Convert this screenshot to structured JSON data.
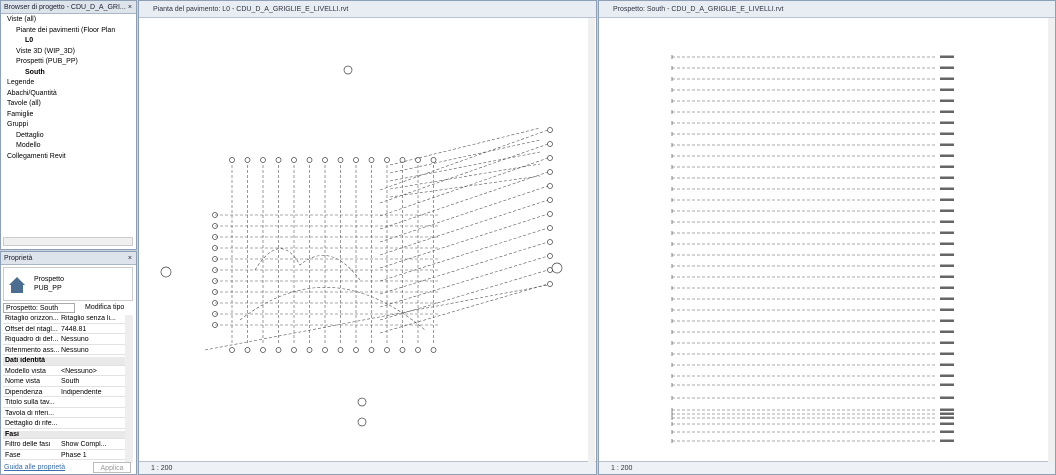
{
  "browser": {
    "title": "Browser di progetto - CDU_D_A_GRI...",
    "close": "×",
    "items": [
      {
        "label": "Viste (all)",
        "level": 0
      },
      {
        "label": "Piante dei pavimenti (Floor Plan",
        "level": 1
      },
      {
        "label": "L0",
        "level": 2
      },
      {
        "label": "Viste 3D (WIP_3D)",
        "level": 1
      },
      {
        "label": "Prospetti (PUB_PP)",
        "level": 1
      },
      {
        "label": "South",
        "level": 2
      },
      {
        "label": "Legende",
        "level": 0
      },
      {
        "label": "Abachi/Quantità",
        "level": 0
      },
      {
        "label": "Tavole (all)",
        "level": 0
      },
      {
        "label": "Famiglie",
        "level": 0
      },
      {
        "label": "Gruppi",
        "level": 0
      },
      {
        "label": "Dettaglio",
        "level": 1
      },
      {
        "label": "Modello",
        "level": 1
      },
      {
        "label": "Collegamenti Revit",
        "level": 0
      }
    ]
  },
  "properties": {
    "title": "Proprietà",
    "close": "×",
    "family": "Prospetto",
    "type": "PUB_PP",
    "selector": "Prospetto: South",
    "edit_type": "Modifica tipo",
    "rows": [
      {
        "name": "Ritaglio orizzon...",
        "value": "Ritaglio senza li..."
      },
      {
        "name": "Offset del ritagl...",
        "value": "7448.81"
      },
      {
        "name": "Riquadro di def...",
        "value": "Nessuno"
      },
      {
        "name": "Riferimento ass...",
        "value": "Nessuno"
      },
      {
        "section": "Dati identità"
      },
      {
        "name": "Modello vista",
        "value": "<Nessuno>"
      },
      {
        "name": "Nome vista",
        "value": "South"
      },
      {
        "name": "Dipendenza",
        "value": "Indipendente"
      },
      {
        "name": "Titolo sulla tav..."
      },
      {
        "name": "Tavola di riferi..."
      },
      {
        "name": "Dettaglio di rife..."
      },
      {
        "section": "Fasi"
      },
      {
        "name": "Filtro delle fasi",
        "value": "Show Compl..."
      },
      {
        "name": "Fase",
        "value": "Phase 1"
      }
    ],
    "help": "Guida alle proprietà",
    "apply": "Applica"
  },
  "views": [
    {
      "title": "Pianta del pavimento: L0 - CDU_D_A_GRIGLIE_E_LIVELLI.rvt",
      "scale": "1 : 200"
    },
    {
      "title": "Prospetto: South - CDU_D_A_GRIGLIE_E_LIVELLI.rvt",
      "scale": "1 : 200"
    }
  ]
}
